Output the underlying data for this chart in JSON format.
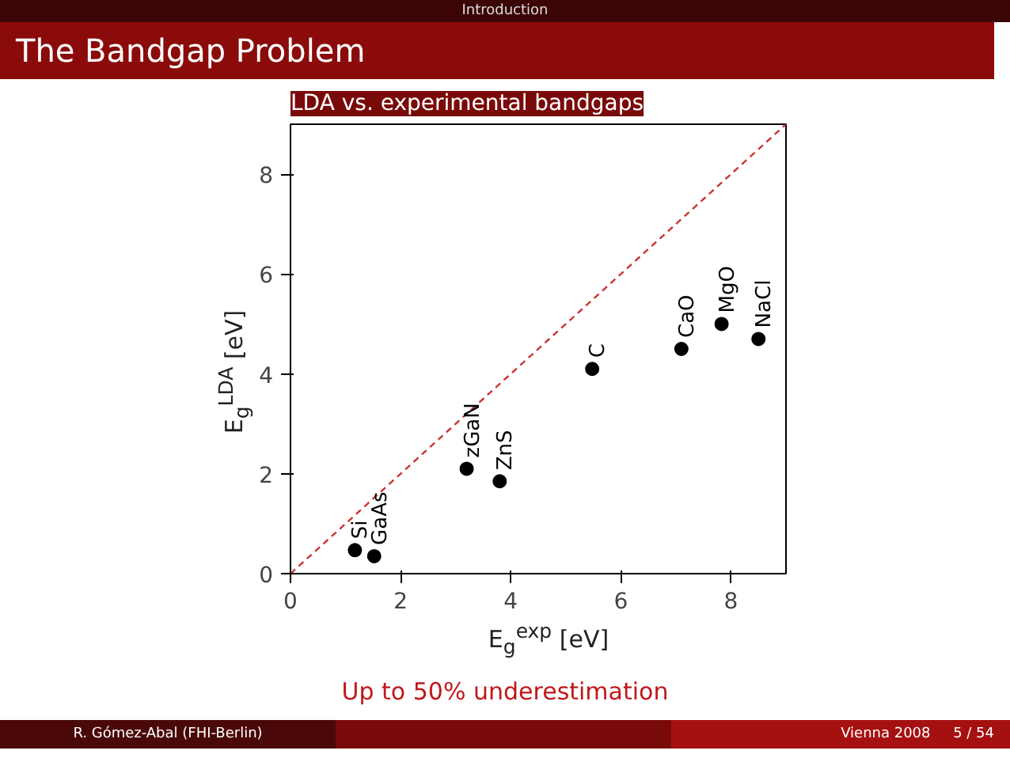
{
  "chart_data": {
    "type": "scatter",
    "title": "LDA vs. experimental bandgaps",
    "xlabel": "E$_{g}$$^{exp}$ [eV]",
    "ylabel": "E$_{g}$$^{LDA}$ [eV]",
    "xlim": [
      0,
      9
    ],
    "ylim": [
      0,
      9
    ],
    "xticks": [
      0,
      2,
      4,
      6,
      8
    ],
    "yticks": [
      0,
      2,
      4,
      6,
      8
    ],
    "grid": false,
    "series": [
      {
        "type": "line",
        "color": "#cc3333",
        "line_style": "dashed",
        "marker": "none",
        "x": [
          0,
          9
        ],
        "values": [
          0,
          9
        ]
      },
      {
        "color": "#000000",
        "marker": "circle",
        "x": [
          1.17,
          1.52,
          3.2,
          3.8,
          5.48,
          7.1,
          7.83,
          8.5
        ],
        "values": [
          0.47,
          0.35,
          2.1,
          1.85,
          4.1,
          4.5,
          5.0,
          4.7
        ]
      }
    ],
    "annotations": [
      "Introduction",
      "The Bandgap Problem",
      "Up to 50% underestimation",
      "R. Gómez-Abal (FHI-Berlin)",
      "Vienna 2008",
      "5 / 54",
      {
        "text": "Si",
        "x": 1.17,
        "y": 0.47
      },
      {
        "text": "GaAs",
        "x": 1.52,
        "y": 0.35
      },
      {
        "text": "zGaN",
        "x": 3.2,
        "y": 2.1
      },
      {
        "text": "ZnS",
        "x": 3.8,
        "y": 1.85
      },
      {
        "text": "C",
        "x": 5.48,
        "y": 4.1
      },
      {
        "text": "CaO",
        "x": 7.1,
        "y": 4.5
      },
      {
        "text": "MgO",
        "x": 7.83,
        "y": 5.0
      },
      {
        "text": "NaCl",
        "x": 8.5,
        "y": 4.7
      }
    ]
  }
}
